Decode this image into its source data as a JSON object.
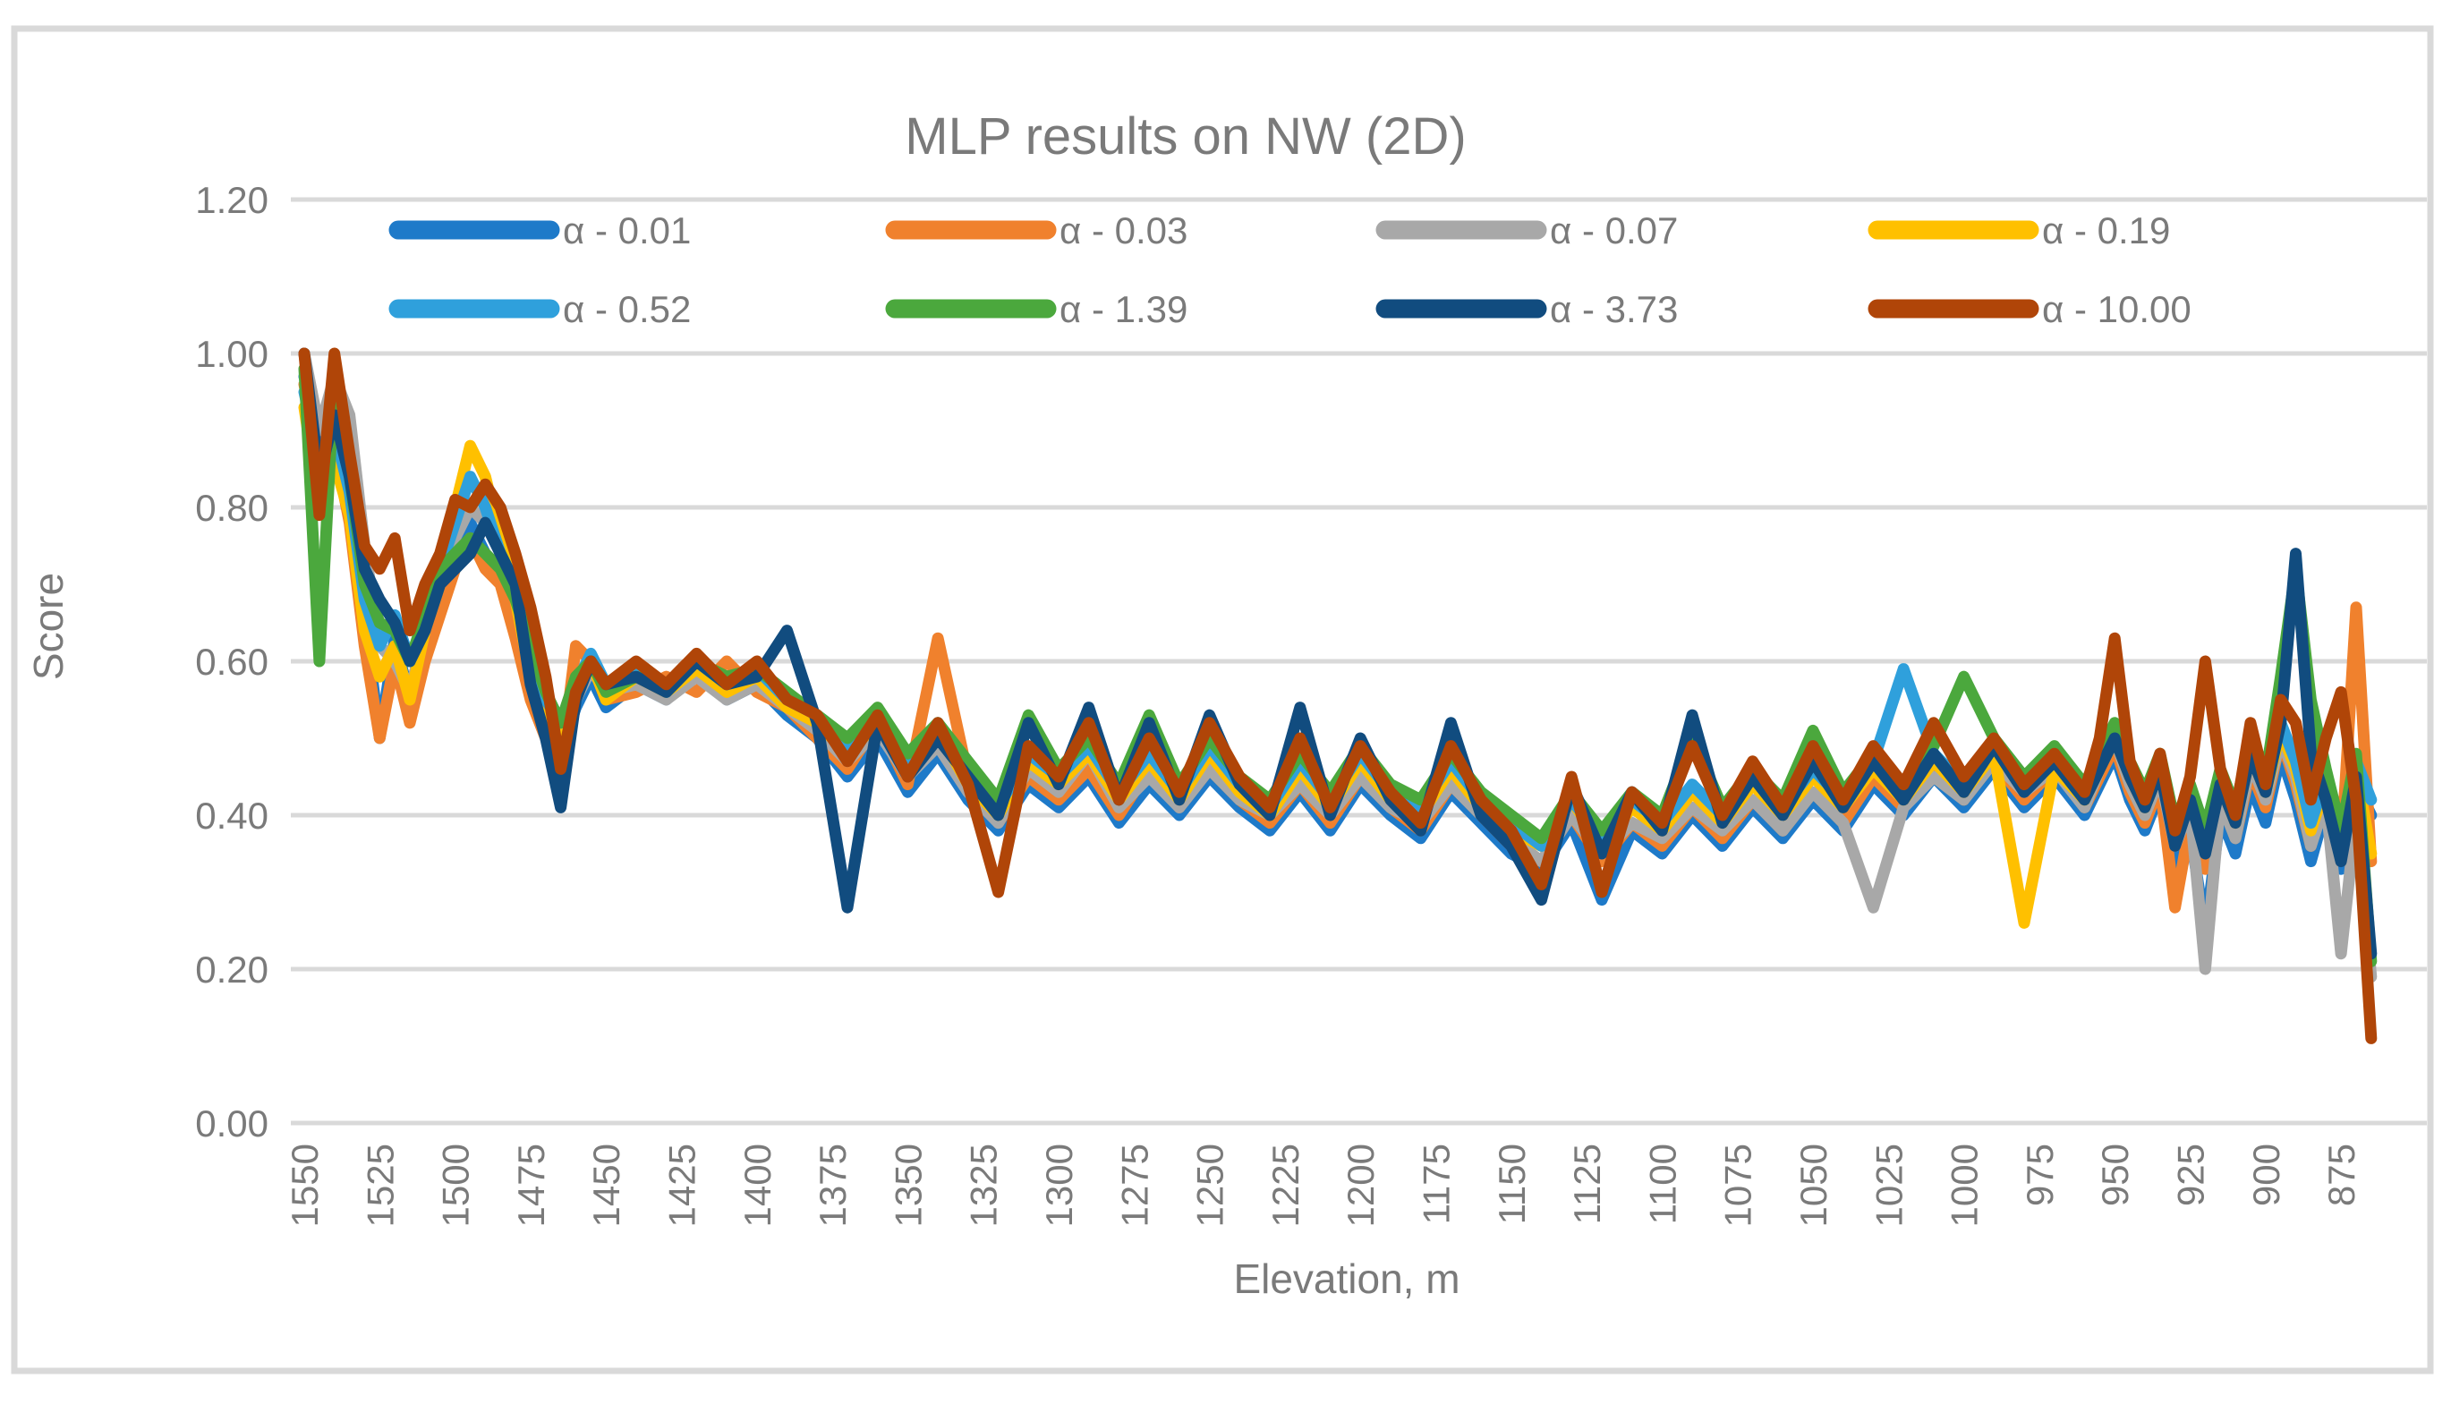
{
  "chart_data": {
    "type": "line",
    "title": "MLP results on NW (2D)",
    "xlabel": "Elevation, m",
    "ylabel": "Score",
    "ylim": [
      0.0,
      1.2
    ],
    "grid": true,
    "grid_color": "#D9D9D9",
    "border_color": "#D9D9D9",
    "text_color": "#7A7A7A",
    "legend_position": "top-inside-two-rows",
    "x_axis_reversed": true,
    "y_ticks": [
      "0.00",
      "0.20",
      "0.40",
      "0.60",
      "0.80",
      "1.00",
      "1.20"
    ],
    "x_tick_labels": [
      "1550",
      "1525",
      "1500",
      "1475",
      "1450",
      "1425",
      "1400",
      "1375",
      "1350",
      "1325",
      "1300",
      "1275",
      "1250",
      "1225",
      "1200",
      "1175",
      "1150",
      "1125",
      "1100",
      "1075",
      "1050",
      "1025",
      "1000",
      "975",
      "950",
      "925",
      "900",
      "875"
    ],
    "x": [
      1550,
      1545,
      1540,
      1535,
      1530,
      1525,
      1520,
      1515,
      1510,
      1505,
      1500,
      1495,
      1490,
      1485,
      1480,
      1475,
      1470,
      1465,
      1460,
      1455,
      1450,
      1440,
      1430,
      1420,
      1410,
      1400,
      1390,
      1380,
      1370,
      1360,
      1350,
      1340,
      1330,
      1320,
      1310,
      1300,
      1290,
      1280,
      1270,
      1260,
      1250,
      1240,
      1230,
      1220,
      1210,
      1200,
      1190,
      1180,
      1170,
      1160,
      1150,
      1140,
      1130,
      1120,
      1110,
      1100,
      1090,
      1080,
      1070,
      1060,
      1050,
      1040,
      1030,
      1020,
      1010,
      1000,
      990,
      980,
      970,
      960,
      955,
      950,
      945,
      940,
      935,
      930,
      925,
      920,
      915,
      910,
      905,
      900,
      895,
      890,
      885,
      880,
      875,
      870,
      865
    ],
    "series": [
      {
        "name": "α - 0.01",
        "color": "#1E7AC9",
        "values": [
          0.97,
          0.88,
          0.9,
          0.8,
          0.66,
          0.5,
          0.63,
          0.55,
          0.62,
          0.68,
          0.74,
          0.78,
          0.74,
          0.72,
          0.66,
          0.57,
          0.52,
          0.48,
          0.54,
          0.58,
          0.54,
          0.57,
          0.55,
          0.59,
          0.55,
          0.57,
          0.53,
          0.5,
          0.45,
          0.5,
          0.43,
          0.48,
          0.42,
          0.38,
          0.44,
          0.41,
          0.45,
          0.39,
          0.44,
          0.4,
          0.45,
          0.41,
          0.38,
          0.43,
          0.38,
          0.44,
          0.4,
          0.37,
          0.43,
          0.39,
          0.35,
          0.33,
          0.39,
          0.29,
          0.38,
          0.35,
          0.4,
          0.36,
          0.41,
          0.37,
          0.42,
          0.38,
          0.44,
          0.4,
          0.45,
          0.41,
          0.46,
          0.41,
          0.45,
          0.4,
          0.44,
          0.48,
          0.42,
          0.38,
          0.43,
          0.33,
          0.38,
          0.25,
          0.4,
          0.35,
          0.44,
          0.39,
          0.48,
          0.42,
          0.34,
          0.41,
          0.33,
          0.44,
          0.4
        ]
      },
      {
        "name": "α - 0.03",
        "color": "#F0812D",
        "values": [
          0.96,
          0.85,
          0.88,
          0.78,
          0.62,
          0.5,
          0.6,
          0.52,
          0.6,
          0.66,
          0.72,
          0.76,
          0.72,
          0.7,
          0.63,
          0.55,
          0.5,
          0.46,
          0.62,
          0.6,
          0.55,
          0.56,
          0.58,
          0.56,
          0.6,
          0.56,
          0.54,
          0.5,
          0.46,
          0.52,
          0.44,
          0.63,
          0.45,
          0.39,
          0.45,
          0.42,
          0.46,
          0.4,
          0.46,
          0.41,
          0.46,
          0.42,
          0.39,
          0.44,
          0.39,
          0.45,
          0.41,
          0.38,
          0.44,
          0.4,
          0.36,
          0.34,
          0.4,
          0.34,
          0.39,
          0.36,
          0.41,
          0.37,
          0.42,
          0.38,
          0.43,
          0.39,
          0.45,
          0.41,
          0.46,
          0.42,
          0.47,
          0.42,
          0.46,
          0.41,
          0.45,
          0.49,
          0.43,
          0.39,
          0.44,
          0.28,
          0.39,
          0.33,
          0.42,
          0.37,
          0.46,
          0.41,
          0.5,
          0.44,
          0.36,
          0.43,
          0.35,
          0.67,
          0.34
        ]
      },
      {
        "name": "α - 0.07",
        "color": "#A8A8A8",
        "values": [
          1.0,
          0.9,
          0.97,
          0.92,
          0.75,
          0.62,
          0.6,
          0.56,
          0.64,
          0.7,
          0.76,
          0.8,
          0.78,
          0.78,
          0.72,
          0.6,
          0.54,
          0.5,
          0.55,
          0.59,
          0.56,
          0.57,
          0.55,
          0.58,
          0.55,
          0.57,
          0.54,
          0.51,
          0.47,
          0.51,
          0.45,
          0.49,
          0.43,
          0.39,
          0.46,
          0.43,
          0.48,
          0.41,
          0.45,
          0.41,
          0.46,
          0.42,
          0.4,
          0.44,
          0.4,
          0.45,
          0.41,
          0.39,
          0.44,
          0.4,
          0.37,
          0.34,
          0.4,
          0.35,
          0.39,
          0.37,
          0.41,
          0.38,
          0.42,
          0.38,
          0.43,
          0.39,
          0.28,
          0.41,
          0.45,
          0.42,
          0.47,
          0.43,
          0.46,
          0.41,
          0.46,
          0.5,
          0.44,
          0.4,
          0.45,
          0.36,
          0.41,
          0.2,
          0.42,
          0.37,
          0.47,
          0.42,
          0.5,
          0.45,
          0.36,
          0.42,
          0.22,
          0.4,
          0.19
        ]
      },
      {
        "name": "α - 0.19",
        "color": "#FFC000",
        "values": [
          0.93,
          0.8,
          0.86,
          0.79,
          0.64,
          0.58,
          0.62,
          0.55,
          0.64,
          0.7,
          0.8,
          0.88,
          0.84,
          0.76,
          0.68,
          0.58,
          0.52,
          0.5,
          0.56,
          0.6,
          0.55,
          0.58,
          0.56,
          0.59,
          0.56,
          0.58,
          0.54,
          0.52,
          0.48,
          0.52,
          0.46,
          0.51,
          0.44,
          0.4,
          0.47,
          0.44,
          0.48,
          0.42,
          0.47,
          0.42,
          0.48,
          0.43,
          0.4,
          0.46,
          0.41,
          0.47,
          0.42,
          0.4,
          0.46,
          0.41,
          0.38,
          0.36,
          0.42,
          0.36,
          0.41,
          0.38,
          0.43,
          0.39,
          0.44,
          0.4,
          0.45,
          0.41,
          0.46,
          0.42,
          0.47,
          0.43,
          0.48,
          0.26,
          0.46,
          0.42,
          0.46,
          0.5,
          0.45,
          0.41,
          0.46,
          0.37,
          0.42,
          0.36,
          0.44,
          0.39,
          0.48,
          0.43,
          0.51,
          0.46,
          0.38,
          0.44,
          0.36,
          0.46,
          0.35
        ]
      },
      {
        "name": "α - 0.52",
        "color": "#2FA0DC",
        "values": [
          0.95,
          0.86,
          0.9,
          0.82,
          0.68,
          0.62,
          0.66,
          0.6,
          0.65,
          0.72,
          0.78,
          0.84,
          0.8,
          0.74,
          0.7,
          0.6,
          0.55,
          0.52,
          0.57,
          0.61,
          0.57,
          0.59,
          0.56,
          0.6,
          0.57,
          0.59,
          0.55,
          0.53,
          0.49,
          0.53,
          0.47,
          0.52,
          0.46,
          0.41,
          0.48,
          0.45,
          0.49,
          0.43,
          0.48,
          0.43,
          0.49,
          0.44,
          0.41,
          0.47,
          0.42,
          0.48,
          0.43,
          0.41,
          0.47,
          0.42,
          0.39,
          0.36,
          0.42,
          0.37,
          0.42,
          0.39,
          0.44,
          0.4,
          0.45,
          0.41,
          0.46,
          0.42,
          0.47,
          0.59,
          0.48,
          0.44,
          0.49,
          0.44,
          0.48,
          0.43,
          0.47,
          0.51,
          0.46,
          0.42,
          0.47,
          0.38,
          0.43,
          0.37,
          0.45,
          0.4,
          0.49,
          0.44,
          0.52,
          0.47,
          0.39,
          0.45,
          0.37,
          0.47,
          0.42
        ]
      },
      {
        "name": "α - 1.39",
        "color": "#4BA83D",
        "values": [
          0.98,
          0.6,
          0.97,
          0.84,
          0.7,
          0.65,
          0.64,
          0.6,
          0.66,
          0.72,
          0.74,
          0.76,
          0.74,
          0.72,
          0.68,
          0.62,
          0.56,
          0.52,
          0.58,
          0.6,
          0.56,
          0.58,
          0.57,
          0.6,
          0.58,
          0.59,
          0.56,
          0.53,
          0.5,
          0.54,
          0.48,
          0.52,
          0.47,
          0.42,
          0.53,
          0.46,
          0.5,
          0.44,
          0.53,
          0.44,
          0.5,
          0.45,
          0.42,
          0.48,
          0.43,
          0.49,
          0.44,
          0.42,
          0.48,
          0.43,
          0.4,
          0.37,
          0.43,
          0.38,
          0.43,
          0.4,
          0.5,
          0.41,
          0.46,
          0.42,
          0.51,
          0.43,
          0.48,
          0.44,
          0.49,
          0.58,
          0.5,
          0.45,
          0.49,
          0.44,
          0.48,
          0.52,
          0.47,
          0.43,
          0.48,
          0.39,
          0.44,
          0.38,
          0.46,
          0.41,
          0.5,
          0.45,
          0.58,
          0.72,
          0.55,
          0.46,
          0.38,
          0.48,
          0.21
        ]
      },
      {
        "name": "α - 3.73",
        "color": "#114C7F",
        "values": [
          1.0,
          0.84,
          0.92,
          0.84,
          0.72,
          0.68,
          0.65,
          0.6,
          0.64,
          0.7,
          0.72,
          0.74,
          0.78,
          0.74,
          0.7,
          0.57,
          0.5,
          0.41,
          0.55,
          0.6,
          0.57,
          0.58,
          0.56,
          0.6,
          0.57,
          0.58,
          0.64,
          0.52,
          0.28,
          0.52,
          0.45,
          0.5,
          0.45,
          0.4,
          0.52,
          0.44,
          0.54,
          0.42,
          0.52,
          0.42,
          0.53,
          0.44,
          0.4,
          0.54,
          0.4,
          0.5,
          0.42,
          0.38,
          0.52,
          0.4,
          0.36,
          0.29,
          0.44,
          0.35,
          0.43,
          0.38,
          0.53,
          0.39,
          0.45,
          0.4,
          0.47,
          0.41,
          0.47,
          0.42,
          0.48,
          0.43,
          0.49,
          0.43,
          0.47,
          0.42,
          0.46,
          0.5,
          0.45,
          0.41,
          0.46,
          0.36,
          0.42,
          0.35,
          0.44,
          0.39,
          0.48,
          0.43,
          0.52,
          0.74,
          0.48,
          0.42,
          0.34,
          0.45,
          0.22
        ]
      },
      {
        "name": "α - 10.00",
        "color": "#B04508",
        "values": [
          1.0,
          0.79,
          1.0,
          0.87,
          0.75,
          0.72,
          0.76,
          0.64,
          0.7,
          0.74,
          0.81,
          0.8,
          0.83,
          0.8,
          0.74,
          0.67,
          0.58,
          0.46,
          0.56,
          0.6,
          0.57,
          0.6,
          0.57,
          0.61,
          0.57,
          0.6,
          0.55,
          0.53,
          0.47,
          0.53,
          0.45,
          0.52,
          0.44,
          0.3,
          0.49,
          0.45,
          0.52,
          0.42,
          0.5,
          0.43,
          0.52,
          0.45,
          0.41,
          0.5,
          0.41,
          0.49,
          0.43,
          0.39,
          0.49,
          0.42,
          0.38,
          0.31,
          0.45,
          0.3,
          0.43,
          0.39,
          0.49,
          0.4,
          0.47,
          0.41,
          0.49,
          0.42,
          0.49,
          0.44,
          0.52,
          0.45,
          0.5,
          0.44,
          0.48,
          0.43,
          0.5,
          0.63,
          0.47,
          0.42,
          0.48,
          0.38,
          0.45,
          0.6,
          0.46,
          0.4,
          0.52,
          0.44,
          0.55,
          0.52,
          0.42,
          0.5,
          0.56,
          0.42,
          0.11
        ]
      }
    ]
  }
}
